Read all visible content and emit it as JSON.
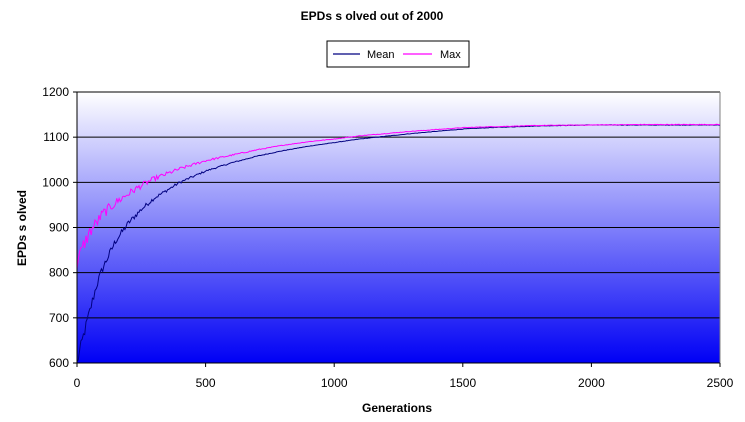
{
  "chart_data": {
    "type": "line",
    "title": "EPDs s olved out of 2000",
    "xlabel": "Generations",
    "ylabel": "EPDs s olved",
    "xlim": [
      0,
      2500
    ],
    "ylim": [
      600,
      1200
    ],
    "x_ticks": [
      0,
      500,
      1000,
      1500,
      2000,
      2500
    ],
    "y_ticks": [
      600,
      700,
      800,
      900,
      1000,
      1100,
      1200
    ],
    "x_tick_labels": [
      "0",
      "500",
      "1000",
      "1500",
      "2000",
      "2500"
    ],
    "y_tick_labels": [
      "600",
      "700",
      "800",
      "900",
      "1000",
      "1100",
      "1200"
    ],
    "grid": "horizontal",
    "legend_position": "top-center",
    "background": "gradient-white-to-blue",
    "series": [
      {
        "name": "Mean",
        "color": "#000080",
        "x": [
          0,
          25,
          50,
          75,
          100,
          150,
          200,
          250,
          300,
          400,
          500,
          600,
          700,
          800,
          900,
          1000,
          1100,
          1200,
          1300,
          1400,
          1500,
          1600,
          1800,
          2000,
          2200,
          2500
        ],
        "y": [
          600,
          660,
          715,
          770,
          810,
          870,
          910,
          940,
          965,
          1000,
          1025,
          1043,
          1058,
          1070,
          1080,
          1088,
          1096,
          1102,
          1108,
          1113,
          1118,
          1121,
          1125,
          1127,
          1127,
          1127
        ]
      },
      {
        "name": "Max",
        "color": "#ff00ff",
        "x": [
          0,
          25,
          50,
          75,
          100,
          150,
          200,
          250,
          300,
          400,
          500,
          600,
          700,
          800,
          900,
          1000,
          1100,
          1200,
          1300,
          1400,
          1500,
          1600,
          1800,
          2000,
          2200,
          2500
        ],
        "y": [
          820,
          860,
          890,
          910,
          930,
          955,
          975,
          993,
          1008,
          1030,
          1048,
          1060,
          1072,
          1082,
          1090,
          1096,
          1103,
          1108,
          1113,
          1117,
          1121,
          1123,
          1126,
          1127,
          1128,
          1128
        ]
      }
    ]
  }
}
